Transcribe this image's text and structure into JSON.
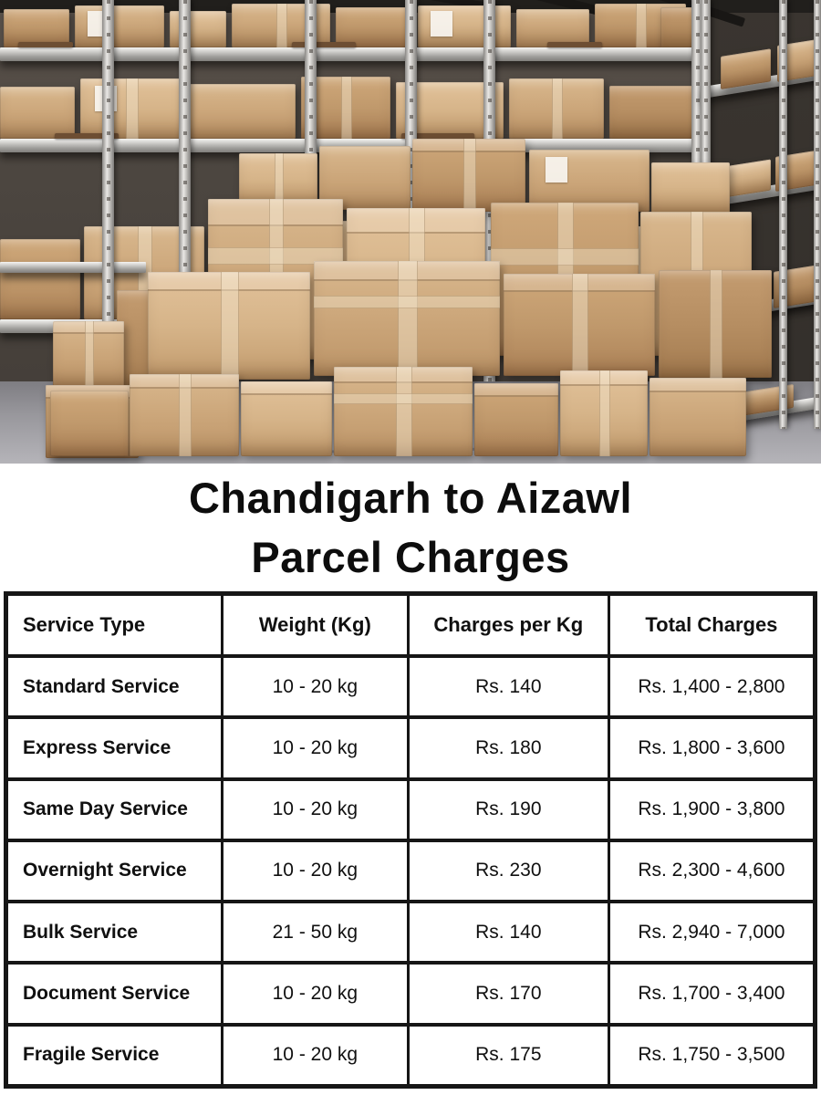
{
  "page": {
    "background": "#ffffff",
    "text_color": "#101010"
  },
  "hero": {
    "description": "Warehouse shelving racks stacked with tan cardboard parcel boxes on a gray floor",
    "wall_color": "#4c4640",
    "box_color": "#cda87c",
    "metal_color": "#d6d5d2",
    "floor_color": "#98979c"
  },
  "title": {
    "line1": "Chandigarh to Aizawl",
    "line2": "Parcel Charges",
    "color": "#0d0d0d"
  },
  "table": {
    "border_color": "#161616",
    "headers": [
      "Service Type",
      "Weight (Kg)",
      "Charges per Kg",
      "Total Charges"
    ],
    "rows": [
      [
        "Standard Service",
        "10 - 20 kg",
        "Rs. 140",
        "Rs. 1,400 - 2,800"
      ],
      [
        "Express Service",
        "10 - 20 kg",
        "Rs. 180",
        "Rs. 1,800 - 3,600"
      ],
      [
        "Same Day Service",
        "10 - 20 kg",
        "Rs. 190",
        "Rs. 1,900 - 3,800"
      ],
      [
        "Overnight Service",
        "10 - 20 kg",
        "Rs. 230",
        "Rs. 2,300 - 4,600"
      ],
      [
        "Bulk Service",
        "21 - 50 kg",
        "Rs. 140",
        "Rs. 2,940 - 7,000"
      ],
      [
        "Document Service",
        "10 - 20 kg",
        "Rs. 170",
        "Rs. 1,700 - 3,400"
      ],
      [
        "Fragile Service",
        "10 - 20 kg",
        "Rs. 175",
        "Rs. 1,750 - 3,500"
      ]
    ]
  }
}
